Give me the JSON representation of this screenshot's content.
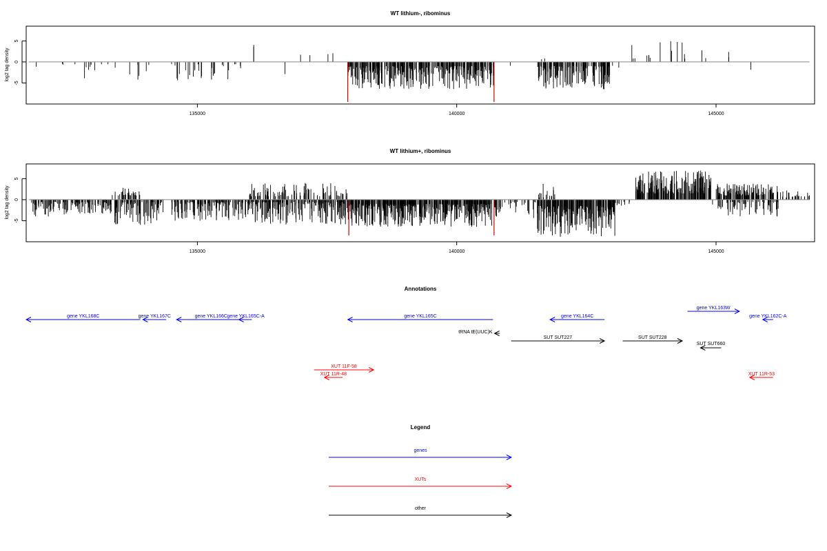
{
  "chart_data": [
    {
      "type": "bar",
      "title": "WT lithium-, ribominus",
      "xlabel": "",
      "ylabel": "log2 tag density",
      "xlim": [
        131700,
        146900
      ],
      "ylim": [
        -10,
        8.5
      ],
      "x_ticks": [
        135000,
        140000,
        145000
      ],
      "y_ticks": [
        -5,
        0,
        5
      ],
      "highlight_color": "#cc0000",
      "highlight_x": [
        137900,
        140720
      ],
      "highlight_values": [
        -9.5,
        -9.5
      ],
      "segments": [
        {
          "start": 131800,
          "end": 131900,
          "density": 0.12,
          "min": -3,
          "max": -0.5
        },
        {
          "start": 132200,
          "end": 132550,
          "density": 0.06,
          "min": -1.2,
          "max": -0.3
        },
        {
          "start": 132600,
          "end": 133450,
          "density": 0.15,
          "min": -4,
          "max": -0.5
        },
        {
          "start": 133600,
          "end": 133900,
          "density": 0.18,
          "min": -4.5,
          "max": -0.5
        },
        {
          "start": 134000,
          "end": 134150,
          "density": 0.15,
          "min": -3.5,
          "max": -0.5
        },
        {
          "start": 134500,
          "end": 135850,
          "density": 0.28,
          "min": -4.5,
          "max": -0.5
        },
        {
          "start": 136050,
          "end": 136150,
          "density": 0.2,
          "min": 3.5,
          "max": 4.2
        },
        {
          "start": 136600,
          "end": 136700,
          "density": 0.1,
          "min": -4,
          "max": -2
        },
        {
          "start": 136950,
          "end": 137300,
          "density": 0.07,
          "min": 1.5,
          "max": 3.2
        },
        {
          "start": 137300,
          "end": 137650,
          "density": 0.07,
          "min": 1,
          "max": 2.8
        },
        {
          "start": 137900,
          "end": 140720,
          "density": 1.6,
          "min": -6.5,
          "max": -1
        },
        {
          "start": 141000,
          "end": 141050,
          "density": 0.1,
          "min": -1.5,
          "max": -0.5
        },
        {
          "start": 141600,
          "end": 141700,
          "density": 0.3,
          "min": 0.5,
          "max": 3.2
        },
        {
          "start": 141550,
          "end": 142950,
          "density": 1.5,
          "min": -6.5,
          "max": -1
        },
        {
          "start": 143000,
          "end": 143200,
          "density": 0.12,
          "min": -2,
          "max": -0.5
        },
        {
          "start": 143350,
          "end": 144400,
          "density": 0.18,
          "min": 0.8,
          "max": 5.2
        },
        {
          "start": 144600,
          "end": 145300,
          "density": 0.07,
          "min": 0.8,
          "max": 2.8
        },
        {
          "start": 145650,
          "end": 145720,
          "density": 0.2,
          "min": -2.8,
          "max": -1.5
        }
      ]
    },
    {
      "type": "bar",
      "title": "WT lithium+, ribominus",
      "xlabel": "",
      "ylabel": "log2 tag density",
      "xlim": [
        131700,
        146900
      ],
      "ylim": [
        -10,
        8.5
      ],
      "x_ticks": [
        135000,
        140000,
        145000
      ],
      "y_ticks": [
        -5,
        0,
        5
      ],
      "highlight_color": "#cc0000",
      "highlight_x": [
        137920,
        140720
      ],
      "highlight_values": [
        -8.5,
        -8.5
      ],
      "segments": [
        {
          "start": 131800,
          "end": 132400,
          "density": 1.0,
          "min": -4,
          "max": -0.5
        },
        {
          "start": 132400,
          "end": 133350,
          "density": 1.2,
          "min": -3.5,
          "max": -0.5
        },
        {
          "start": 133350,
          "end": 133900,
          "density": 0.8,
          "min": 1,
          "max": 2.8
        },
        {
          "start": 133400,
          "end": 134350,
          "density": 1.3,
          "min": -6,
          "max": -0.5
        },
        {
          "start": 134500,
          "end": 136100,
          "density": 1.4,
          "min": -5,
          "max": -0.5
        },
        {
          "start": 136000,
          "end": 137900,
          "density": 0.7,
          "min": 0.8,
          "max": 4
        },
        {
          "start": 136100,
          "end": 137900,
          "density": 1.4,
          "min": -6,
          "max": -0.5
        },
        {
          "start": 137900,
          "end": 140800,
          "density": 2.0,
          "min": -6.5,
          "max": -1
        },
        {
          "start": 140800,
          "end": 141550,
          "density": 0.5,
          "min": -4.5,
          "max": -0.5
        },
        {
          "start": 141550,
          "end": 141900,
          "density": 0.6,
          "min": 0.5,
          "max": 4
        },
        {
          "start": 141550,
          "end": 143050,
          "density": 2.0,
          "min": -8.8,
          "max": -1.5
        },
        {
          "start": 143050,
          "end": 143350,
          "density": 0.4,
          "min": -2,
          "max": -0.5
        },
        {
          "start": 143450,
          "end": 144900,
          "density": 1.8,
          "min": 1.5,
          "max": 7
        },
        {
          "start": 144900,
          "end": 145200,
          "density": 0.3,
          "min": -2.5,
          "max": -0.5
        },
        {
          "start": 145000,
          "end": 146200,
          "density": 1.5,
          "min": 1,
          "max": 3.8
        },
        {
          "start": 145200,
          "end": 146200,
          "density": 0.8,
          "min": -4,
          "max": -0.5
        },
        {
          "start": 146200,
          "end": 146850,
          "density": 0.5,
          "min": 0.5,
          "max": 2.2
        }
      ]
    }
  ],
  "annotations": {
    "title": "Annotations",
    "items": [
      {
        "label": "gene YKL168C",
        "start": 131700,
        "end": 133900,
        "strand": "-",
        "color": "#0000ff",
        "row": 1
      },
      {
        "label": "gene YKL167C",
        "start": 133950,
        "end": 134400,
        "strand": "-",
        "color": "#0000ff",
        "row": 1
      },
      {
        "label": "gene YKL166C",
        "start": 134600,
        "end": 135850,
        "strand": "-",
        "color": "#0000ff",
        "row": 1
      },
      {
        "label": "gene YKL165C-A",
        "start": 135800,
        "end": 136050,
        "strand": "-",
        "color": "#0000ff",
        "row": 1
      },
      {
        "label": "gene YKL165C",
        "start": 137900,
        "end": 140700,
        "strand": "-",
        "color": "#0000ff",
        "row": 1
      },
      {
        "label": "gene YKL164C",
        "start": 141800,
        "end": 142850,
        "strand": "-",
        "color": "#0000ff",
        "row": 1
      },
      {
        "label": "gene YKL163W",
        "start": 144450,
        "end": 145450,
        "strand": "+",
        "color": "#0000ff",
        "row": 0
      },
      {
        "label": "gene YKL162C-A",
        "start": 145900,
        "end": 146100,
        "strand": "-",
        "color": "#0000ff",
        "row": 1
      },
      {
        "label": "tRNA tE(UUC)K",
        "start": 140730,
        "end": 140830,
        "strand": "-",
        "color": "#000000",
        "row": 2
      },
      {
        "label": "SUT SUT227",
        "start": 141050,
        "end": 142850,
        "strand": "+",
        "color": "#000000",
        "row": 3
      },
      {
        "label": "SUT SUT228",
        "start": 143200,
        "end": 144350,
        "strand": "+",
        "color": "#000000",
        "row": 3
      },
      {
        "label": "SUT SUT660",
        "start": 144700,
        "end": 145100,
        "strand": "-",
        "color": "#000000",
        "row": 4
      },
      {
        "label": "XUT 11F-58",
        "start": 137250,
        "end": 138400,
        "strand": "+",
        "color": "#ff0000",
        "row": 6
      },
      {
        "label": "XUT 11R-48",
        "start": 137450,
        "end": 137800,
        "strand": "-",
        "color": "#ff0000",
        "row": 7
      },
      {
        "label": "XUT 11R-53",
        "start": 145650,
        "end": 146100,
        "strand": "-",
        "color": "#ff0000",
        "row": 7
      }
    ]
  },
  "legend": {
    "title": "Legend",
    "items": [
      {
        "label": "genes",
        "color": "#0000ff"
      },
      {
        "label": "XUTs",
        "color": "#ff0000"
      },
      {
        "label": "other",
        "color": "#000000"
      }
    ]
  }
}
